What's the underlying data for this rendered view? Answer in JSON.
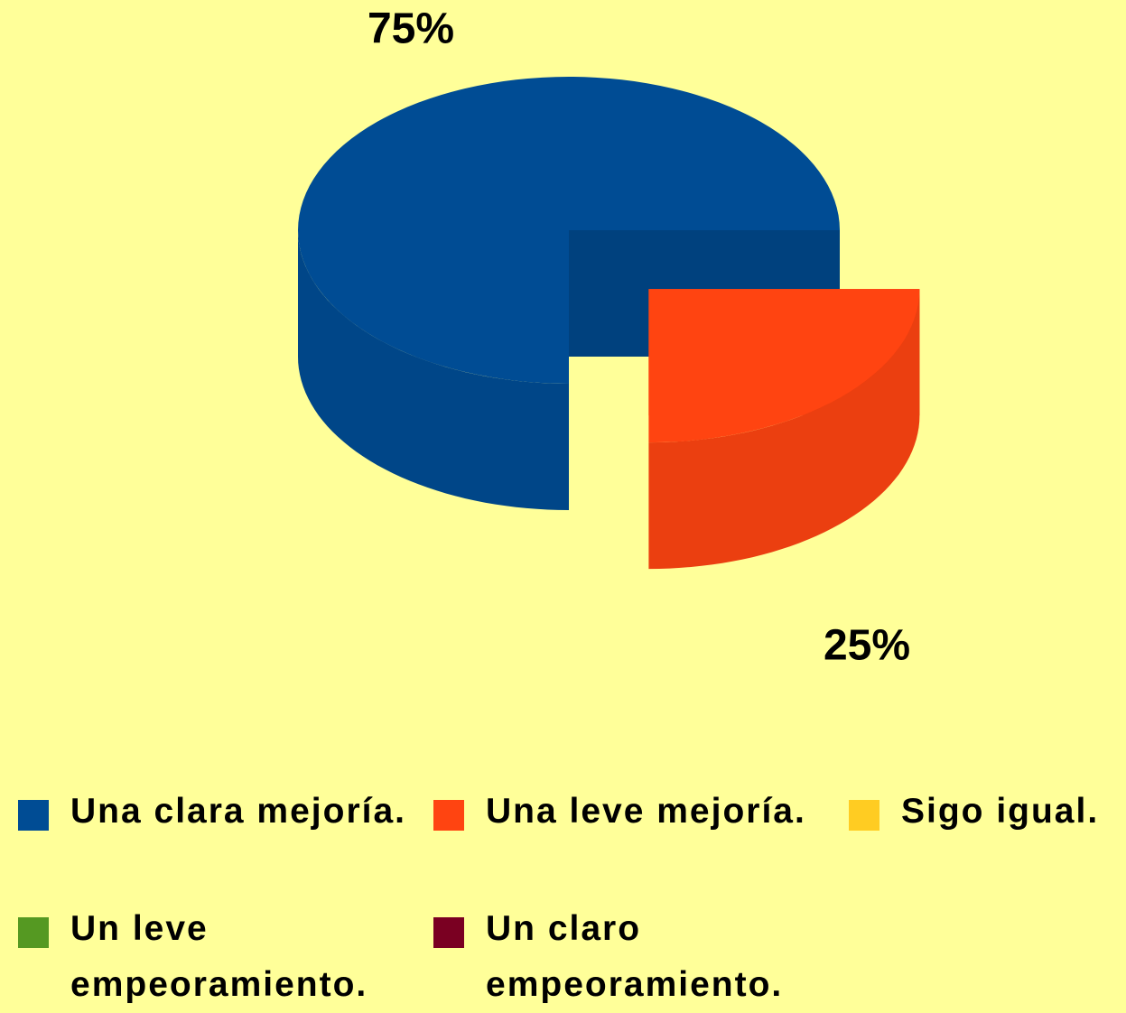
{
  "chart_data": {
    "type": "pie3d",
    "categories": [
      "Una clara mejoría.",
      "Una leve mejoría.",
      "Sigo igual.",
      "Un leve empeoramiento.",
      "Un claro empeoramiento."
    ],
    "values": [
      75,
      25,
      0,
      0,
      0
    ],
    "value_labels": [
      "75%",
      "25%",
      null,
      null,
      null
    ],
    "colors": [
      "#004c94",
      "#ff4411",
      "#ffcc22",
      "#559922",
      "#7a0022"
    ],
    "legend": "bottom"
  }
}
